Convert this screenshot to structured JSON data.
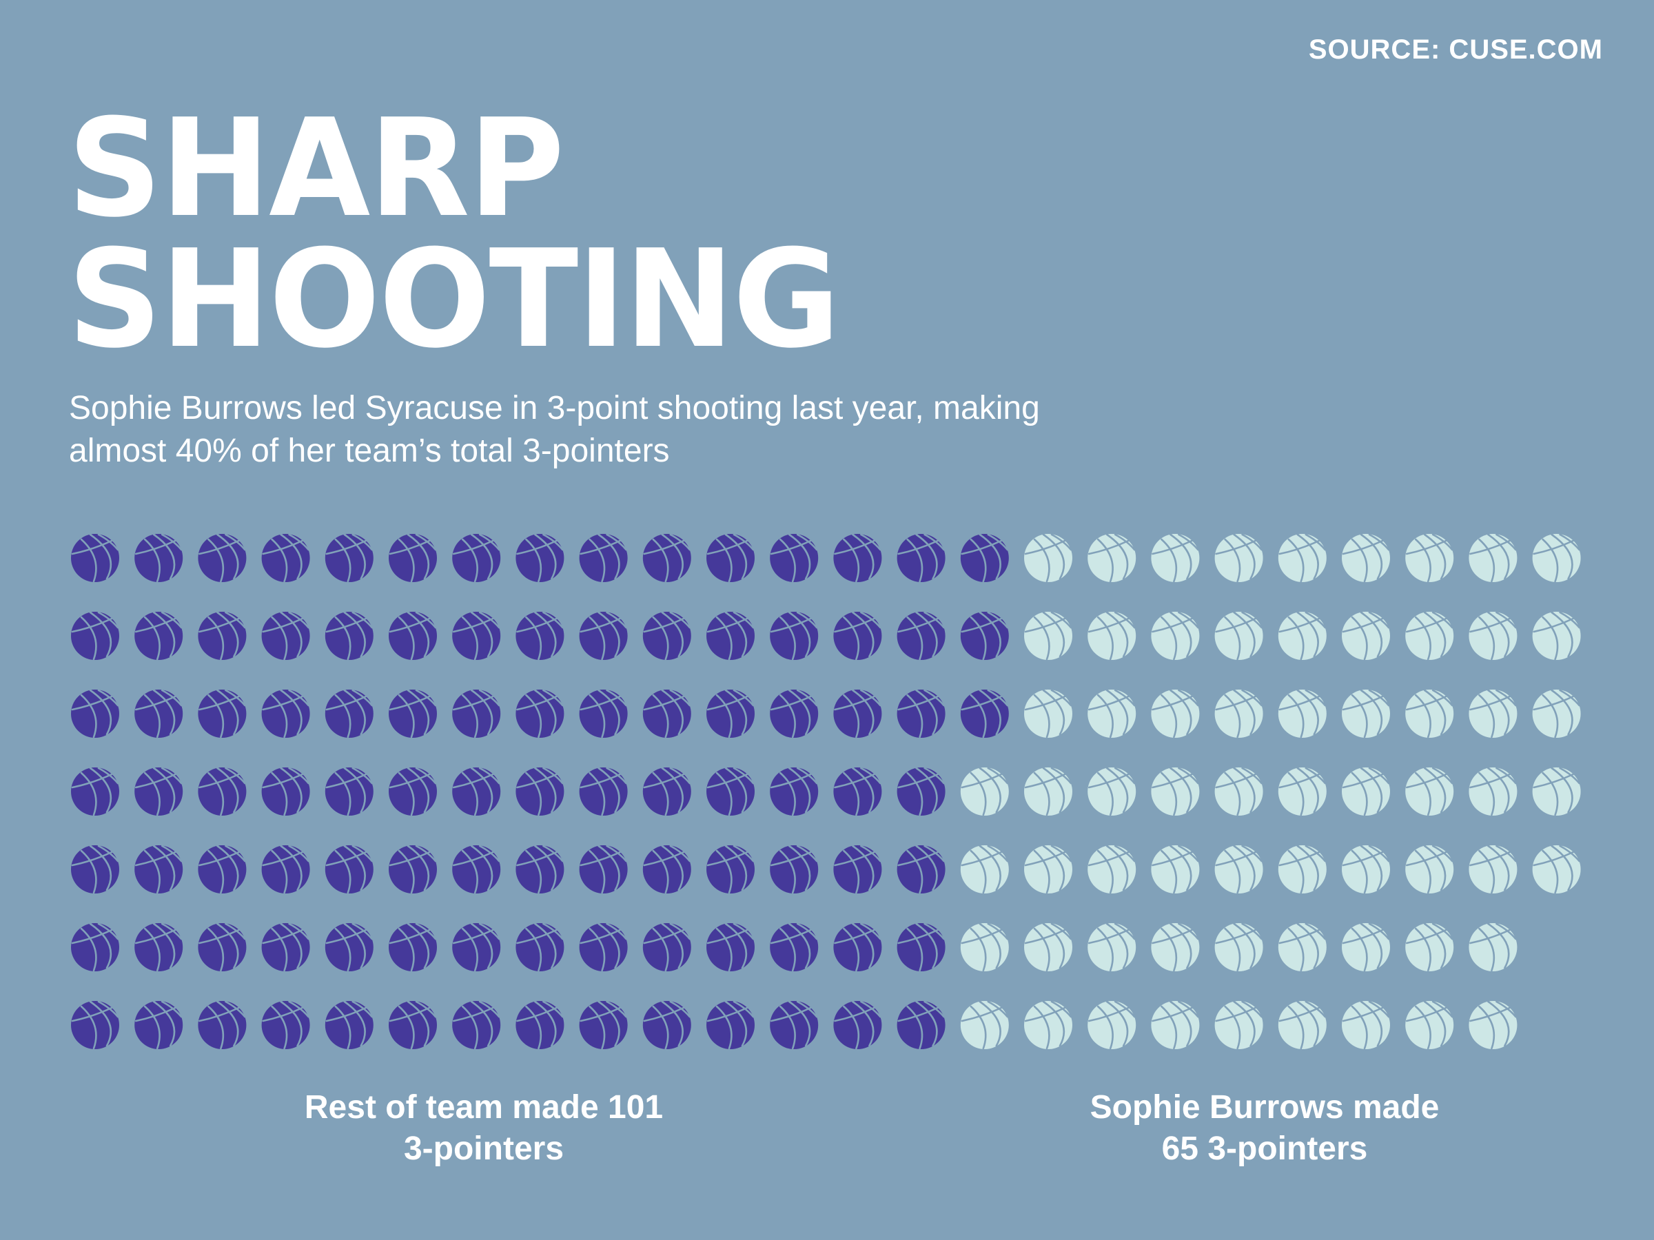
{
  "source": "SOURCE: CUSE.COM",
  "title": {
    "line1": "SHARP",
    "line2": "SHOOTING"
  },
  "subtitle": "Sophie Burrows led Syracuse in 3-point shooting last year, making almost 40% of her team’s total 3-pointers",
  "labels": {
    "left": {
      "line1": "Rest of team made 101",
      "line2": "3-pointers"
    },
    "right": {
      "line1": "Sophie Burrows made",
      "line2": "65 3-pointers"
    }
  },
  "colors": {
    "background": "#81a1b9",
    "team_ball": "#45399a",
    "sophie_ball": "#cde7e6"
  },
  "chart_data": {
    "type": "waffle",
    "unit": "3-pointers",
    "icon": "basketball-icon",
    "series": [
      {
        "name": "Rest of team",
        "value": 101,
        "color": "#45399a"
      },
      {
        "name": "Sophie Burrows",
        "value": 65,
        "color": "#cde7e6"
      }
    ],
    "rows": [
      {
        "team": 15,
        "sophie": 9
      },
      {
        "team": 15,
        "sophie": 9
      },
      {
        "team": 15,
        "sophie": 9
      },
      {
        "team": 14,
        "sophie": 10
      },
      {
        "team": 14,
        "sophie": 10
      },
      {
        "team": 14,
        "sophie": 9
      },
      {
        "team": 14,
        "sophie": 9
      }
    ]
  }
}
